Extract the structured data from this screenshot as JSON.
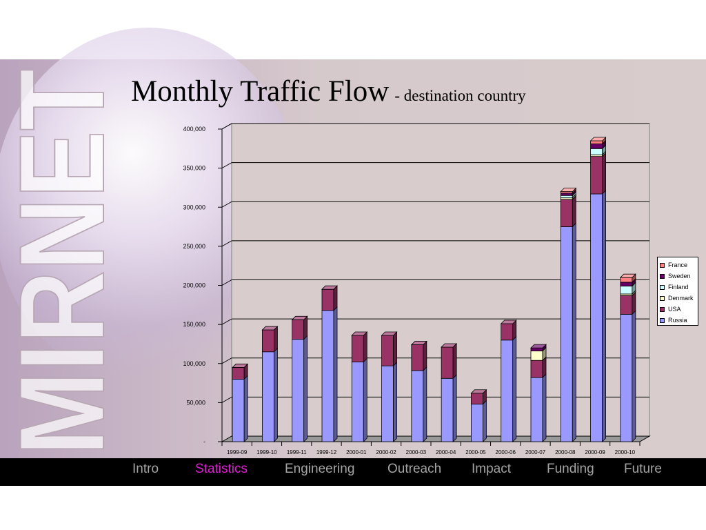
{
  "slide": {
    "title": "Monthly Traffic Flow",
    "subtitle": "- destination country",
    "logo_text": "MIRNET"
  },
  "nav": {
    "items": [
      {
        "label": "Intro",
        "active": false
      },
      {
        "label": "Statistics",
        "active": true
      },
      {
        "label": "Engineering",
        "active": false
      },
      {
        "label": "Outreach",
        "active": false
      },
      {
        "label": "Impact",
        "active": false
      },
      {
        "label": "Funding",
        "active": false
      },
      {
        "label": "Future",
        "active": false
      }
    ]
  },
  "colors": {
    "Russia": "#9999ff",
    "USA": "#993366",
    "Denmark": "#ffffcc",
    "Finland": "#ccffff",
    "Sweden": "#660066",
    "France": "#ff8080",
    "nav_active": "#e31ad8",
    "nav_inactive": "#a4a4a4"
  },
  "chart_data": {
    "type": "bar",
    "stacked": true,
    "three_d": true,
    "title": "",
    "xlabel": "",
    "ylabel": "",
    "ylim": [
      0,
      400000
    ],
    "y_tick_labels": [
      "-",
      "50,000",
      "100,000",
      "150,000",
      "200,000",
      "250,000",
      "300,000",
      "350,000",
      "400,000"
    ],
    "grid": true,
    "legend_position": "right",
    "categories": [
      "1999-09",
      "1999-10",
      "1999-11",
      "1999-12",
      "2000-01",
      "2000-02",
      "2000-03",
      "2000-04",
      "2000-05",
      "2000-06",
      "2000-07",
      "2000-08",
      "2000-09",
      "2000-10"
    ],
    "series": [
      {
        "name": "Russia",
        "values": [
          80000,
          115000,
          131000,
          168000,
          102000,
          97000,
          91000,
          81000,
          48000,
          130000,
          82000,
          275000,
          317000,
          163000
        ]
      },
      {
        "name": "USA",
        "values": [
          15000,
          28000,
          25000,
          27000,
          34000,
          39000,
          33000,
          40000,
          14000,
          21000,
          22000,
          35000,
          48000,
          24000
        ]
      },
      {
        "name": "Denmark",
        "values": [
          0,
          0,
          0,
          0,
          0,
          0,
          0,
          0,
          0,
          0,
          12000,
          2000,
          2000,
          2000
        ]
      },
      {
        "name": "Finland",
        "values": [
          0,
          0,
          0,
          0,
          0,
          0,
          0,
          0,
          0,
          0,
          0,
          3000,
          8000,
          10000
        ]
      },
      {
        "name": "Sweden",
        "values": [
          0,
          0,
          0,
          0,
          0,
          0,
          0,
          0,
          0,
          0,
          4000,
          3000,
          6000,
          5000
        ]
      },
      {
        "name": "France",
        "values": [
          0,
          0,
          0,
          0,
          0,
          0,
          0,
          0,
          0,
          0,
          0,
          2000,
          4000,
          6000
        ]
      }
    ]
  }
}
